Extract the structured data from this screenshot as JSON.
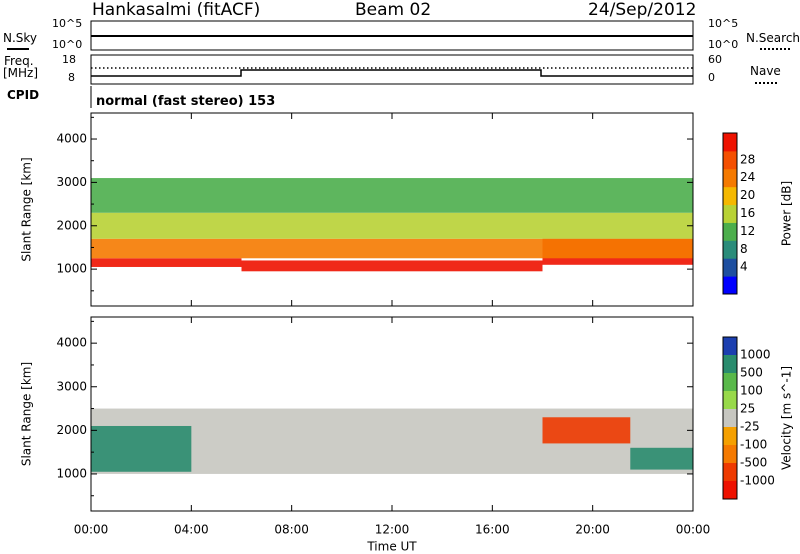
{
  "header": {
    "station": "Hankasalmi (fitACF)",
    "beam": "Beam 02",
    "date": "24/Sep/2012"
  },
  "noise_panel": {
    "left_label": "N.Sky",
    "right_label": "N.Search",
    "ticks": [
      "10^5",
      "10^0"
    ]
  },
  "freq_panel": {
    "left_label_1": "Freq.",
    "left_label_2": "[MHz]",
    "left_ticks": [
      "18",
      "8"
    ],
    "right_ticks": [
      "60",
      "0"
    ],
    "right_label": "Nave",
    "cpid_label": "CPID"
  },
  "mode_text": "normal (fast stereo) 153",
  "chart_data": [
    {
      "type": "heatmap",
      "name": "power",
      "ylabel": "Slant Range [km]",
      "y_ticks": [
        1000,
        2000,
        3000,
        4000
      ],
      "ylim": [
        150,
        4600
      ],
      "xlim": [
        0,
        24
      ],
      "x_ticks": [
        "00:00",
        "04:00",
        "08:00",
        "12:00",
        "16:00",
        "20:00",
        "00:00"
      ],
      "xlabel": "Time UT",
      "colorbar": {
        "label": "Power [dB]",
        "ticks": [
          "4",
          "8",
          "12",
          "16",
          "20",
          "24",
          "28"
        ],
        "colors": [
          "#0000ff",
          "#1e4fa0",
          "#2a8c7a",
          "#4cae4c",
          "#b8d235",
          "#f5b800",
          "#f57a00",
          "#f44f00",
          "#ee1200"
        ]
      },
      "bands": [
        {
          "t0": 0,
          "t1": 6,
          "r0": 1050,
          "r1": 1250,
          "value": 28
        },
        {
          "t0": 6,
          "t1": 18,
          "r0": 950,
          "r1": 1200,
          "value": 28
        },
        {
          "t0": 18,
          "t1": 24,
          "r0": 1100,
          "r1": 1700,
          "value": 28
        },
        {
          "t0": 0,
          "t1": 24,
          "r0": 1250,
          "r1": 1700,
          "value": 20
        },
        {
          "t0": 0,
          "t1": 24,
          "r0": 1700,
          "r1": 2300,
          "value": 12
        },
        {
          "t0": 0,
          "t1": 24,
          "r0": 2300,
          "r1": 3100,
          "value": 8
        }
      ]
    },
    {
      "type": "heatmap",
      "name": "velocity",
      "ylabel": "Slant Range [km]",
      "y_ticks": [
        1000,
        2000,
        3000,
        4000
      ],
      "ylim": [
        150,
        4600
      ],
      "xlim": [
        0,
        24
      ],
      "x_ticks": [
        "00:00",
        "04:00",
        "08:00",
        "12:00",
        "16:00",
        "20:00",
        "00:00"
      ],
      "xlabel": "Time UT",
      "colorbar": {
        "label": "Velocity [m s^-1]",
        "ticks": [
          "1000",
          "500",
          "100",
          "25",
          "-25",
          "-100",
          "-500",
          "-1000"
        ],
        "colors": [
          "#1c3fb0",
          "#2a8c6e",
          "#59b84a",
          "#98d94a",
          "#c6c6c0",
          "#f5a000",
          "#f57a00",
          "#ee3a00",
          "#ee1200"
        ]
      },
      "bands": [
        {
          "t0": 0,
          "t1": 24,
          "r0": 1000,
          "r1": 2500,
          "value": 0
        },
        {
          "t0": 0,
          "t1": 4,
          "r0": 1050,
          "r1": 2100,
          "value": 500
        },
        {
          "t0": 18,
          "t1": 21.5,
          "r0": 1700,
          "r1": 2300,
          "value": -500
        },
        {
          "t0": 21.5,
          "t1": 24,
          "r0": 1100,
          "r1": 1600,
          "value": 500
        }
      ]
    }
  ]
}
